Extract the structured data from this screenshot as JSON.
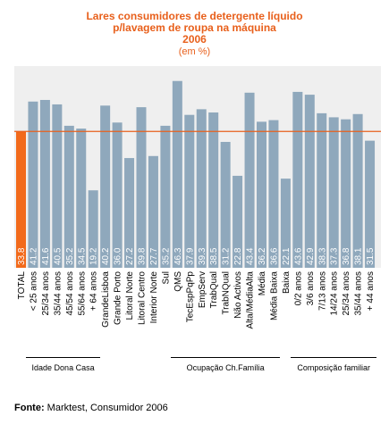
{
  "chart_data": {
    "type": "bar",
    "title_lines": [
      "Lares consumidores de detergente líquido",
      "p/lavagem de roupa na máquina",
      "2006"
    ],
    "subtitle": "(em %)",
    "categories": [
      "TOTAL",
      "< 25 anos",
      "25/34 anos",
      "35/44 anos",
      "45/54 anos",
      "55/64 anos",
      "+ 64 anos",
      "GrandeLisboa",
      "Grande Porto",
      "Litoral Norte",
      "Litoral Centro",
      "Interior Norte",
      "Sul",
      "QMS",
      "TecEspPqPp",
      "EmpServ",
      "TrabQual",
      "TrabNQual",
      "Não Activos",
      "Alta/MédiaAlta",
      "Média",
      "Média Baixa",
      "Baixa",
      "0/2 anos",
      "3/6 anos",
      "7/13 anos",
      "14/24 anos",
      "25/34 anos",
      "35/44 anos",
      "+ 44 anos"
    ],
    "values": [
      33.8,
      41.2,
      41.6,
      40.5,
      35.2,
      34.5,
      19.2,
      40.2,
      36.0,
      27.2,
      39.8,
      27.7,
      35.2,
      46.3,
      37.9,
      39.3,
      38.5,
      31.2,
      22.8,
      43.4,
      36.2,
      36.6,
      22.1,
      43.6,
      42.9,
      38.3,
      37.3,
      36.8,
      38.1,
      31.5
    ],
    "value_labels": [
      "33.8",
      "41.2",
      "41.6",
      "40.5",
      "35.2",
      "34.5",
      "19.2",
      "40.2",
      "36.0",
      "27.2",
      "39.8",
      "27.7",
      "35.2",
      "46.3",
      "37.9",
      "39.3",
      "38.5",
      "31.2",
      "22.8",
      "43.4",
      "36.2",
      "36.6",
      "22.1",
      "43.6",
      "42.9",
      "38.3",
      "37.3",
      "36.8",
      "38.1",
      "31.5"
    ],
    "reference_line": 33.8,
    "ylim": [
      0,
      50
    ],
    "grid": false,
    "colors": {
      "highlight_bar": "#f26a1b",
      "bar": "#8fa8bc",
      "reference_line": "#e8601c",
      "plot_background": "#efefef",
      "value_text": "#ffffff",
      "title": "#e8601c"
    },
    "groups": [
      {
        "label": "Idade Dona Casa",
        "from": 1,
        "to": 6
      },
      {
        "label": "Ocupação Ch.Família",
        "from": 13,
        "to": 21
      },
      {
        "label": "Composição familiar",
        "from": 23,
        "to": 29
      }
    ]
  },
  "source": {
    "label": "Fonte:",
    "text": " Marktest, Consumidor 2006"
  }
}
